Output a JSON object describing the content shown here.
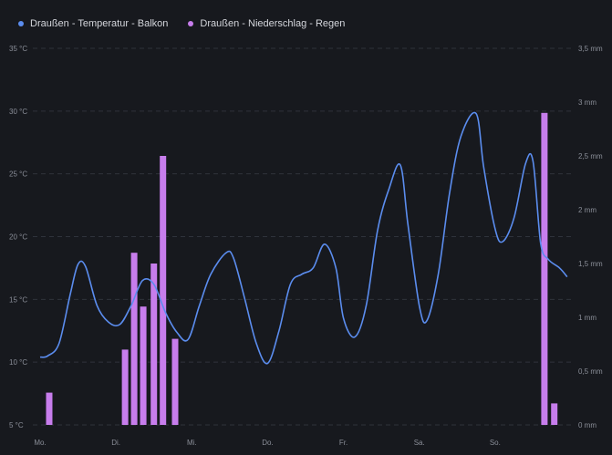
{
  "legend": {
    "temp_label": "Draußen - Temperatur - Balkon",
    "rain_label": "Draußen - Niederschlag - Regen"
  },
  "colors": {
    "background": "#17191e",
    "grid": "#2f333b",
    "temperature": "#5b8def",
    "rain": "#c77dec",
    "tick_text": "#8a8e98"
  },
  "chart_data": {
    "type": "line",
    "x_categories": [
      "Mo.",
      "Di.",
      "Mi.",
      "Do.",
      "Fr.",
      "Sa.",
      "So."
    ],
    "y_left": {
      "ticks": [
        "5 °C",
        "10 °C",
        "15 °C",
        "20 °C",
        "25 °C",
        "30 °C",
        "35 °C"
      ],
      "range": [
        5,
        35
      ]
    },
    "y_right": {
      "ticks": [
        "0 mm",
        "0,5 mm",
        "1 mm",
        "1,5 mm",
        "2 mm",
        "2,5 mm",
        "3 mm",
        "3,5 mm"
      ],
      "range": [
        0,
        3.5
      ]
    },
    "grid": "horizontal-dashed",
    "legend_position": "top-left",
    "series": [
      {
        "name": "Draußen - Temperatur - Balkon",
        "type": "line",
        "axis": "left",
        "points": [
          [
            0.0,
            10.4
          ],
          [
            0.1,
            10.5
          ],
          [
            0.25,
            11.5
          ],
          [
            0.4,
            15.5
          ],
          [
            0.5,
            17.8
          ],
          [
            0.6,
            17.6
          ],
          [
            0.75,
            14.5
          ],
          [
            0.9,
            13.2
          ],
          [
            1.05,
            13.0
          ],
          [
            1.2,
            14.5
          ],
          [
            1.35,
            16.5
          ],
          [
            1.5,
            16.2
          ],
          [
            1.65,
            14.0
          ],
          [
            1.8,
            12.4
          ],
          [
            1.95,
            11.8
          ],
          [
            2.1,
            14.5
          ],
          [
            2.25,
            17.0
          ],
          [
            2.45,
            18.7
          ],
          [
            2.55,
            18.3
          ],
          [
            2.7,
            15.0
          ],
          [
            2.85,
            11.5
          ],
          [
            3.0,
            9.9
          ],
          [
            3.15,
            12.5
          ],
          [
            3.3,
            16.2
          ],
          [
            3.45,
            17.0
          ],
          [
            3.6,
            17.5
          ],
          [
            3.75,
            19.4
          ],
          [
            3.9,
            17.5
          ],
          [
            4.0,
            13.5
          ],
          [
            4.15,
            12.0
          ],
          [
            4.3,
            14.5
          ],
          [
            4.45,
            20.5
          ],
          [
            4.6,
            23.8
          ],
          [
            4.75,
            25.7
          ],
          [
            4.85,
            21.0
          ],
          [
            5.0,
            14.5
          ],
          [
            5.1,
            13.3
          ],
          [
            5.25,
            17.0
          ],
          [
            5.4,
            23.5
          ],
          [
            5.55,
            28.0
          ],
          [
            5.75,
            29.8
          ],
          [
            5.85,
            25.5
          ],
          [
            6.0,
            20.6
          ],
          [
            6.1,
            19.6
          ],
          [
            6.25,
            21.5
          ],
          [
            6.4,
            25.8
          ],
          [
            6.5,
            26.0
          ],
          [
            6.6,
            19.5
          ],
          [
            6.7,
            18.2
          ],
          [
            6.85,
            17.5
          ],
          [
            6.95,
            16.8
          ]
        ]
      },
      {
        "name": "Draußen - Niederschlag - Regen",
        "type": "bar",
        "axis": "right",
        "bars": [
          [
            0.12,
            0.3
          ],
          [
            1.12,
            0.7
          ],
          [
            1.24,
            1.6
          ],
          [
            1.36,
            1.1
          ],
          [
            1.5,
            1.5
          ],
          [
            1.62,
            2.5
          ],
          [
            1.78,
            0.8
          ],
          [
            6.65,
            2.9
          ],
          [
            6.78,
            0.2
          ]
        ]
      }
    ]
  }
}
